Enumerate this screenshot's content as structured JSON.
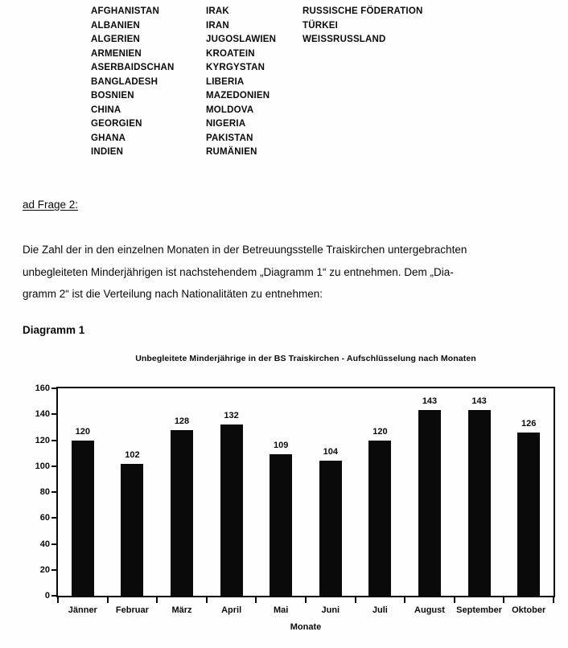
{
  "page": {
    "background": "#fefefe",
    "text_color": "#0a0a0a"
  },
  "country_list": {
    "columns": [
      [
        "AFGHANISTAN",
        "ALBANIEN",
        "ALGERIEN",
        "ARMENIEN",
        "ASERBAIDSCHAN",
        "BANGLADESH",
        "BOSNIEN",
        "CHINA",
        "GEORGIEN",
        "GHANA",
        "INDIEN"
      ],
      [
        "IRAK",
        "IRAN",
        "JUGOSLAWIEN",
        "KROATEIN",
        "KYRGYSTAN",
        "LIBERIA",
        "MAZEDONIEN",
        "MOLDOVA",
        "NIGERIA",
        "PAKISTAN",
        "RUMÄNIEN"
      ],
      [
        "RUSSISCHE FÖDERATION",
        "TÜRKEI",
        "WEISSRUSSLAND"
      ]
    ]
  },
  "section": {
    "heading": "ad Frage 2:",
    "paragraph_lines": [
      "Die Zahl der in den einzelnen Monaten in der Betreuungsstelle Traiskirchen untergebrachten",
      "unbegleiteten Minderjährigen ist nachstehendem „Diagramm 1“ zu entnehmen. Dem „Dia-",
      "gramm 2“ ist die Verteilung nach Nationalitäten zu entnehmen:"
    ]
  },
  "diagram_label": "Diagramm 1",
  "chart_data": {
    "type": "bar",
    "title": "Unbegleitete Minderjährige in der BS Traiskirchen - Aufschlüsselung nach Monaten",
    "categories": [
      "Jänner",
      "Februar",
      "März",
      "April",
      "Mai",
      "Juni",
      "Juli",
      "August",
      "September",
      "Oktober"
    ],
    "values": [
      120,
      102,
      128,
      132,
      109,
      104,
      120,
      143,
      143,
      126
    ],
    "xlabel": "Monate",
    "ylabel": "",
    "ylim": [
      0,
      160
    ],
    "ytick_step": 20,
    "bar_color": "#0a0a0a",
    "grid": false,
    "legend": false,
    "data_labels": true
  }
}
